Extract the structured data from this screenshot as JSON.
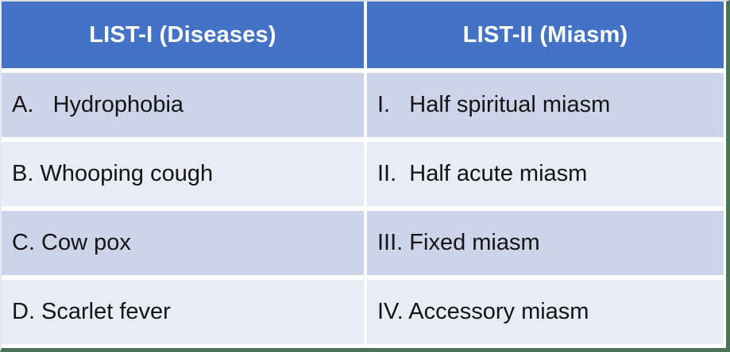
{
  "table": {
    "list1": {
      "header": "LIST-I (Diseases)",
      "rows": [
        "A.   Hydrophobia",
        "B. Whooping cough",
        "C. Cow pox",
        "D. Scarlet fever"
      ]
    },
    "list2": {
      "header": "LIST-II (Miasm)",
      "rows": [
        "I.   Half spiritual miasm",
        "II.  Half acute miasm",
        "III. Fixed miasm",
        "IV. Accessory miasm"
      ]
    }
  },
  "colors": {
    "header_bg": "#4472c4",
    "header_text": "#ffffff",
    "band_dark": "#cdd4ea",
    "band_light": "#e9ebf5",
    "outer_border": "#4a7458",
    "body_text": "#141414",
    "cell_gap": "#ffffff"
  }
}
